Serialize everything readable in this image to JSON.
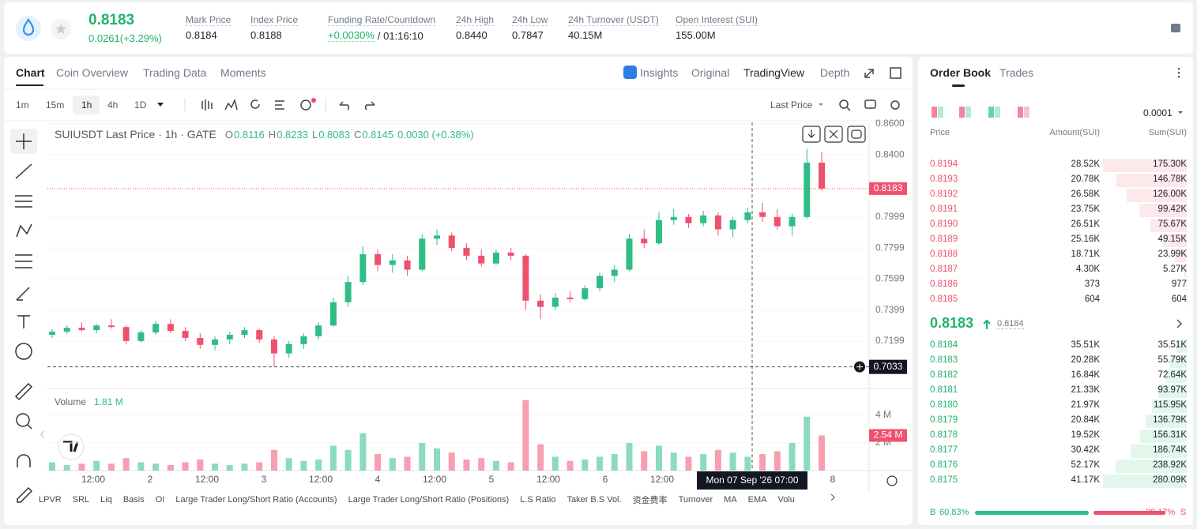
{
  "header": {
    "price": "0.8183",
    "change": "0.0261(+3.29%)",
    "stats": [
      {
        "label": "Mark Price",
        "value": "0.8184"
      },
      {
        "label": "Index Price",
        "value": "0.8188"
      },
      {
        "label": "Funding Rate/Countdown",
        "value": "+0.0030%",
        "extra": "/ 01:16:10"
      },
      {
        "label": "24h High",
        "value": "0.8440"
      },
      {
        "label": "24h Low",
        "value": "0.7847"
      },
      {
        "label": "24h Turnover (USDT)",
        "value": "40.15M"
      },
      {
        "label": "Open Interest (SUI)",
        "value": "155.00M"
      }
    ]
  },
  "tabs": [
    "Chart",
    "Coin Overview",
    "Trading Data",
    "Moments"
  ],
  "view_tabs": [
    "Insights",
    "Original",
    "TradingView",
    "Depth"
  ],
  "intervals": [
    "1m",
    "15m",
    "1h",
    "4h",
    "1D"
  ],
  "price_source": "Last Price",
  "chart_data": {
    "type": "candlestick",
    "legend": "SUIUSDT Last Price · 1h · GATE",
    "ohlc": [
      {
        "key": "O",
        "value": "0.8116"
      },
      {
        "key": "H",
        "value": "0.8233"
      },
      {
        "key": "L",
        "value": "0.8083"
      },
      {
        "key": "C",
        "value": "0.8145"
      }
    ],
    "change": "0.0030 (+0.38%)",
    "up_color": "#2ebd85",
    "down_color": "#f0506e",
    "ylim": [
      0.6904,
      0.861
    ],
    "yticks": [
      {
        "value": 0.86,
        "label": "0.8600"
      },
      {
        "value": 0.84,
        "label": "0.8400"
      },
      0.7999,
      0.7799,
      0.7599,
      0.7399,
      0.7199
    ],
    "open": [
      0.724,
      0.726,
      0.7285,
      0.727,
      0.73,
      0.729,
      0.72,
      0.7255,
      0.731,
      0.7265,
      0.722,
      0.7175,
      0.721,
      0.724,
      0.727,
      0.721,
      0.712,
      0.718,
      0.723,
      0.73,
      0.745,
      0.758,
      0.776,
      0.769,
      0.772,
      0.766,
      0.786,
      0.788,
      0.78,
      0.775,
      0.77,
      0.777,
      0.775,
      0.746,
      0.742,
      0.748,
      0.747,
      0.754,
      0.762,
      0.766,
      0.786,
      0.783,
      0.798,
      0.8,
      0.796,
      0.801,
      0.792,
      0.798,
      0.803,
      0.8,
      0.794,
      0.8,
      0.835
    ],
    "high": [
      0.7275,
      0.73,
      0.732,
      0.731,
      0.734,
      0.73,
      0.727,
      0.733,
      0.734,
      0.729,
      0.725,
      0.723,
      0.726,
      0.729,
      0.728,
      0.723,
      0.72,
      0.725,
      0.732,
      0.748,
      0.762,
      0.781,
      0.779,
      0.776,
      0.775,
      0.789,
      0.792,
      0.79,
      0.783,
      0.779,
      0.779,
      0.78,
      0.776,
      0.75,
      0.751,
      0.752,
      0.756,
      0.764,
      0.769,
      0.789,
      0.792,
      0.803,
      0.805,
      0.802,
      0.804,
      0.803,
      0.8,
      0.806,
      0.809,
      0.805,
      0.802,
      0.844,
      0.842
    ],
    "low": [
      0.722,
      0.7245,
      0.726,
      0.725,
      0.728,
      0.718,
      0.719,
      0.724,
      0.725,
      0.72,
      0.715,
      0.714,
      0.718,
      0.722,
      0.719,
      0.7033,
      0.709,
      0.715,
      0.721,
      0.729,
      0.742,
      0.756,
      0.765,
      0.764,
      0.762,
      0.765,
      0.782,
      0.778,
      0.772,
      0.768,
      0.769,
      0.772,
      0.74,
      0.734,
      0.74,
      0.745,
      0.746,
      0.752,
      0.758,
      0.765,
      0.78,
      0.782,
      0.795,
      0.793,
      0.794,
      0.788,
      0.787,
      0.796,
      0.797,
      0.792,
      0.788,
      0.799,
      0.817
    ],
    "close": [
      0.726,
      0.7285,
      0.727,
      0.73,
      0.729,
      0.72,
      0.7255,
      0.731,
      0.7265,
      0.722,
      0.7175,
      0.721,
      0.724,
      0.727,
      0.721,
      0.712,
      0.718,
      0.723,
      0.73,
      0.745,
      0.758,
      0.776,
      0.769,
      0.772,
      0.766,
      0.786,
      0.788,
      0.78,
      0.775,
      0.77,
      0.777,
      0.775,
      0.746,
      0.742,
      0.748,
      0.747,
      0.754,
      0.762,
      0.766,
      0.786,
      0.783,
      0.798,
      0.8,
      0.796,
      0.801,
      0.792,
      0.798,
      0.803,
      0.8,
      0.794,
      0.8,
      0.835,
      0.8183
    ],
    "last_price": 0.8183,
    "crosshair": {
      "price": 0.7033,
      "time": "Mon 07 Sep '26   07:00"
    },
    "x_labels": [
      "12:00",
      "2",
      "12:00",
      "3",
      "12:00",
      "4",
      "12:00",
      "5",
      "12:00",
      "6",
      "12:00",
      null,
      null,
      "8"
    ],
    "volume": {
      "title": "Volume",
      "current": "1.81 M",
      "ylim": [
        0,
        5940000
      ],
      "yticks": [
        {
          "value": 4000000,
          "label": "4 M"
        },
        {
          "value": 2000000,
          "label": "2 M"
        }
      ],
      "values": [
        600000,
        400000,
        500000,
        700000,
        500000,
        900000,
        600000,
        500000,
        400000,
        600000,
        800000,
        500000,
        400000,
        500000,
        600000,
        1500000,
        900000,
        700000,
        800000,
        1800000,
        1500000,
        2700000,
        1200000,
        900000,
        1000000,
        2000000,
        1600000,
        1300000,
        800000,
        900000,
        700000,
        600000,
        5100000,
        1900000,
        1000000,
        700000,
        800000,
        1000000,
        1200000,
        2000000,
        1400000,
        1800000,
        1300000,
        1000000,
        1200000,
        1500000,
        1300000,
        1000000,
        1200000,
        1400000,
        2000000,
        3900000,
        2540000
      ],
      "last": {
        "value": 2540000,
        "label": "2.54 M"
      }
    }
  },
  "indicators": [
    "LPVR",
    "SRL",
    "Liq",
    "Basis",
    "OI",
    "Large Trader Long/Short Ratio (Accounts)",
    "Large Trader Long/Short Ratio (Positions)",
    "L.S Ratio",
    "Taker B.S Vol.",
    "资金费率",
    "Turnover",
    "MA",
    "EMA",
    "Volu"
  ],
  "order_book": {
    "tabs": [
      "Order Book",
      "Trades"
    ],
    "precision": "0.0001",
    "headers": [
      "Price",
      "Amount(SUI)",
      "Sum(SUI)"
    ],
    "asks": [
      {
        "price": "0.8194",
        "amount": "28.52K",
        "sum": {
          "value": 175300,
          "label": "175.30K"
        }
      },
      {
        "price": "0.8193",
        "amount": "20.78K",
        "sum": {
          "value": 146780,
          "label": "146.78K"
        }
      },
      {
        "price": "0.8192",
        "amount": "26.58K",
        "sum": {
          "value": 126000,
          "label": "126.00K"
        }
      },
      {
        "price": "0.8191",
        "amount": "23.75K",
        "sum": {
          "value": 99420,
          "label": "99.42K"
        }
      },
      {
        "price": "0.8190",
        "amount": "26.51K",
        "sum": {
          "value": 75670,
          "label": "75.67K"
        }
      },
      {
        "price": "0.8189",
        "amount": "25.16K",
        "sum": {
          "value": 49150,
          "label": "49.15K"
        }
      },
      {
        "price": "0.8188",
        "amount": "18.71K",
        "sum": {
          "value": 23990,
          "label": "23.99K"
        }
      },
      {
        "price": "0.8187",
        "amount": "4.30K",
        "sum": {
          "value": 5270,
          "label": "5.27K"
        }
      },
      {
        "price": "0.8186",
        "amount": "373",
        "sum": 977
      },
      {
        "price": "0.8185",
        "amount": "604",
        "sum": 604
      }
    ],
    "mid": {
      "price": "0.8183",
      "mark": "0.8184"
    },
    "bids": [
      {
        "price": "0.8184",
        "amount": "35.51K",
        "sum": {
          "value": 35510,
          "label": "35.51K"
        }
      },
      {
        "price": "0.8183",
        "amount": "20.28K",
        "sum": {
          "value": 55790,
          "label": "55.79K"
        }
      },
      {
        "price": "0.8182",
        "amount": "16.84K",
        "sum": {
          "value": 72640,
          "label": "72.64K"
        }
      },
      {
        "price": "0.8181",
        "amount": "21.33K",
        "sum": {
          "value": 93970,
          "label": "93.97K"
        }
      },
      {
        "price": "0.8180",
        "amount": "21.97K",
        "sum": {
          "value": 115950,
          "label": "115.95K"
        }
      },
      {
        "price": "0.8179",
        "amount": "20.84K",
        "sum": {
          "value": 136790,
          "label": "136.79K"
        }
      },
      {
        "price": "0.8178",
        "amount": "19.52K",
        "sum": {
          "value": 156310,
          "label": "156.31K"
        }
      },
      {
        "price": "0.8177",
        "amount": "30.42K",
        "sum": {
          "value": 186740,
          "label": "186.74K"
        }
      },
      {
        "price": "0.8176",
        "amount": "52.17K",
        "sum": {
          "value": 238920,
          "label": "238.92K"
        }
      },
      {
        "price": "0.8175",
        "amount": "41.17K",
        "sum": {
          "value": 280090,
          "label": "280.09K"
        }
      }
    ],
    "ratio": {
      "buy_key": "B",
      "buy": {
        "value": 60.83,
        "label": "60.83%"
      },
      "sell": {
        "value": 39.17,
        "label": "39.17%"
      },
      "sell_key": "S"
    }
  }
}
